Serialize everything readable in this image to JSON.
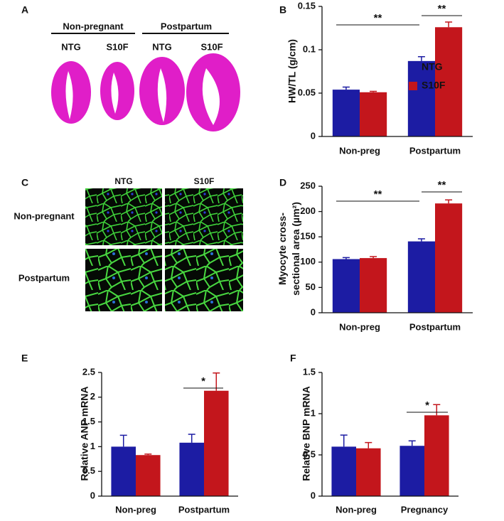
{
  "image_panels": {
    "A": {
      "panel_label": "A",
      "groups": [
        {
          "label": "Non-pregnant",
          "columns": [
            "NTG",
            "S10F"
          ]
        },
        {
          "label": "Postpartum",
          "columns": [
            "NTG",
            "S10F"
          ]
        }
      ]
    },
    "C": {
      "panel_label": "C",
      "columns": [
        "NTG",
        "S10F"
      ],
      "rows": [
        "Non-pregnant",
        "Postpartum"
      ]
    }
  },
  "chart_data": [
    {
      "type": "bar",
      "panel_label": "B",
      "ylabel": [
        "HW/TL (g/cm)"
      ],
      "categories": [
        "Non-preg",
        "Postpartum"
      ],
      "series": [
        {
          "name": "NTG",
          "color": "#1c1ca3",
          "values": [
            0.054,
            0.087
          ],
          "errors": [
            0.003,
            0.005
          ]
        },
        {
          "name": "S10F",
          "color": "#c3161c",
          "values": [
            0.051,
            0.126
          ],
          "errors": [
            0.001,
            0.006
          ]
        }
      ],
      "ylim": [
        0,
        0.15
      ],
      "yticks": [
        0,
        0.05,
        0.1,
        0.15
      ],
      "legend": true,
      "annotations": [
        "**",
        "**"
      ]
    },
    {
      "type": "bar",
      "panel_label": "D",
      "ylabel": [
        "Myocyte cross-",
        "sectional area (µm²)"
      ],
      "categories": [
        "Non-preg",
        "Postpartum"
      ],
      "series": [
        {
          "color": "#1c1ca3",
          "values": [
            106,
            141
          ],
          "errors": [
            3,
            5
          ]
        },
        {
          "color": "#c3161c",
          "values": [
            108,
            216
          ],
          "errors": [
            3,
            7
          ]
        }
      ],
      "ylim": [
        0,
        250
      ],
      "yticks": [
        0,
        50,
        100,
        150,
        200,
        250
      ],
      "legend": false,
      "annotations": [
        "**",
        "**"
      ]
    },
    {
      "type": "bar",
      "panel_label": "E",
      "ylabel": [
        "Relative ANP mRNA"
      ],
      "categories": [
        "Non-preg",
        "Postpartum"
      ],
      "series": [
        {
          "color": "#1c1ca3",
          "values": [
            1.0,
            1.08
          ],
          "errors": [
            0.23,
            0.17
          ]
        },
        {
          "color": "#c3161c",
          "values": [
            0.83,
            2.13
          ],
          "errors": [
            0.02,
            0.36
          ]
        }
      ],
      "ylim": [
        0,
        2.5
      ],
      "yticks": [
        0,
        0.5,
        1,
        1.5,
        2,
        2.5
      ],
      "legend": false,
      "annotations": [
        "*"
      ]
    },
    {
      "type": "bar",
      "panel_label": "F",
      "ylabel": [
        "Relative BNP mRNA"
      ],
      "categories": [
        "Non-preg",
        "Pregnancy"
      ],
      "series": [
        {
          "color": "#1c1ca3",
          "values": [
            0.6,
            0.61
          ],
          "errors": [
            0.14,
            0.06
          ]
        },
        {
          "color": "#c3161c",
          "values": [
            0.58,
            0.98
          ],
          "errors": [
            0.07,
            0.13
          ]
        }
      ],
      "ylim": [
        0,
        1.5
      ],
      "yticks": [
        0,
        0.5,
        1,
        1.5
      ],
      "legend": false,
      "annotations": [
        "*"
      ]
    }
  ]
}
